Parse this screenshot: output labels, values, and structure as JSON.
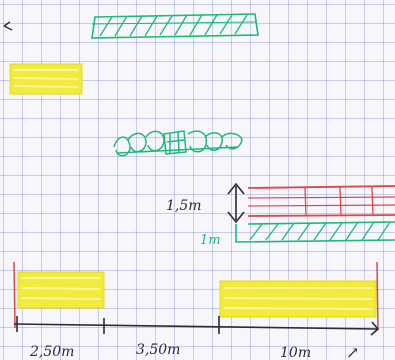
{
  "labels": {
    "height_label": "1,5m",
    "ground_label": "1m",
    "dim_left": "2,50m",
    "dim_middle": "3,50m",
    "dim_right": "10m",
    "arrow_mark": "↗"
  },
  "colors": {
    "yellow": "#f2ea3c",
    "green": "#1fb87a",
    "red": "#d8484f",
    "ink": "#2a2a3a"
  }
}
